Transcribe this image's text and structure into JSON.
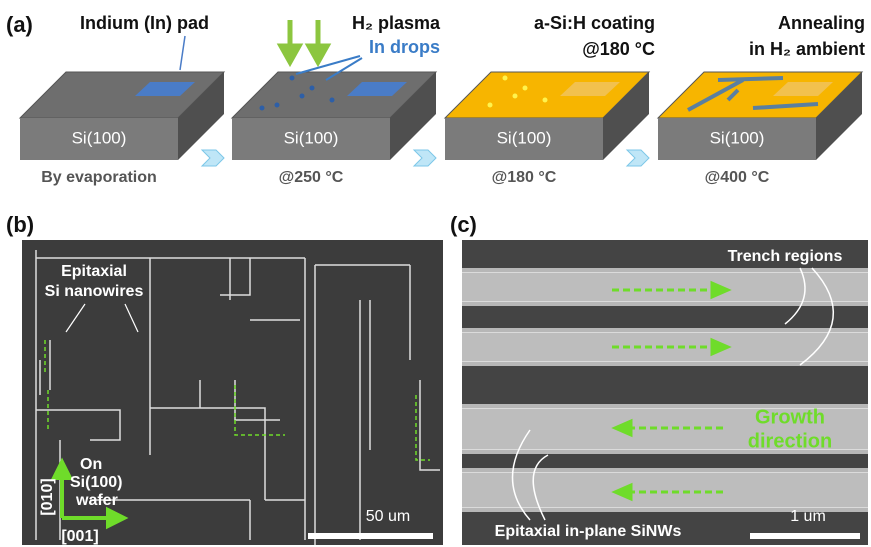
{
  "panel_a": {
    "label": "(a)",
    "steps": [
      {
        "title": [
          "Indium (In) pad"
        ],
        "box": "Si(100)",
        "caption": "By evaporation"
      },
      {
        "title": [
          "H₂ plasma",
          "In drops"
        ],
        "box": "Si(100)",
        "caption": "@250 °C"
      },
      {
        "title": [
          "a-Si:H coating",
          "@180 °C"
        ],
        "box": "Si(100)",
        "caption": "@180 °C"
      },
      {
        "title": [
          "Annealing",
          "in H₂ ambient"
        ],
        "box": "Si(100)",
        "caption": "@400 °C"
      }
    ]
  },
  "panel_b": {
    "label": "(b)",
    "annotation": [
      "Epitaxial",
      "Si nanowires"
    ],
    "substrate": [
      "On",
      "Si(100)",
      "wafer"
    ],
    "axis_y": "[010]",
    "axis_x": "[001]",
    "scale_bar": "50 um"
  },
  "panel_c": {
    "label": "(c)",
    "trench_label": "Trench regions",
    "growth_label": [
      "Growth",
      "direction"
    ],
    "nanowire_label": "Epitaxial in-plane SiNWs",
    "scale_bar": "1 um"
  }
}
